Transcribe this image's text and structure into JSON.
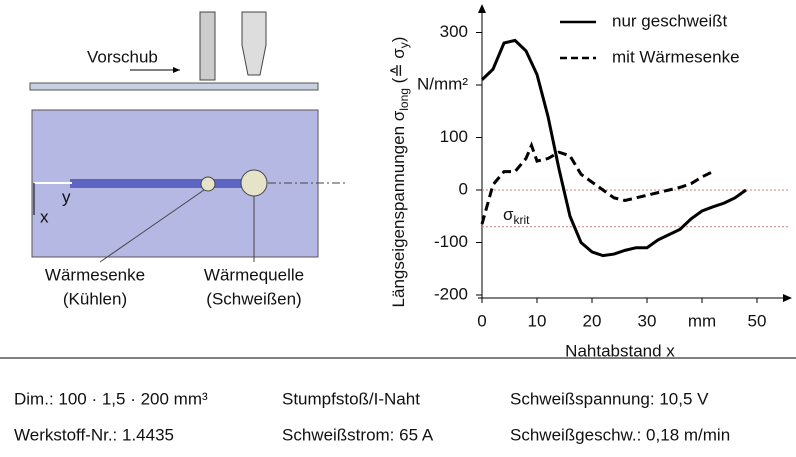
{
  "chart_data": {
    "type": "line",
    "y_label": [
      "Längseigenspannungen σ",
      "long",
      " (≙ σ",
      "y",
      ")"
    ],
    "x_label": "Nahtabstand x",
    "xlim": [
      0,
      50
    ],
    "xticks": [
      0,
      10,
      20,
      30,
      {
        "value": 40,
        "label": "mm"
      },
      50
    ],
    "ylim": [
      -200,
      300
    ],
    "yticks": [
      300,
      {
        "value": 200,
        "label": "N/mm²"
      },
      100,
      0,
      -100,
      -200
    ],
    "ref_lines": [
      0,
      -70
    ],
    "ref_color": "#d08080",
    "annotation": [
      "σ",
      "krit"
    ],
    "series": [
      {
        "name": "nur geschweißt",
        "color": "#000000",
        "style": "solid",
        "x": [
          0,
          2,
          4,
          6,
          8,
          10,
          12,
          14,
          16,
          18,
          20,
          22,
          24,
          26,
          28,
          30,
          32,
          34,
          36,
          38,
          40,
          42,
          44,
          46,
          48
        ],
        "values": [
          210,
          230,
          280,
          285,
          265,
          220,
          140,
          40,
          -50,
          -100,
          -118,
          -125,
          -122,
          -115,
          -110,
          -110,
          -95,
          -85,
          -75,
          -55,
          -40,
          -32,
          -25,
          -15,
          0
        ]
      },
      {
        "name": "mit Wärmesenke",
        "color": "#000000",
        "style": "dashed",
        "x": [
          0,
          2,
          4,
          6,
          8,
          9,
          10,
          12,
          14,
          16,
          18,
          20,
          22,
          24,
          26,
          28,
          30,
          32,
          34,
          36,
          38,
          40,
          42
        ],
        "values": [
          -65,
          10,
          35,
          35,
          60,
          85,
          55,
          60,
          72,
          65,
          30,
          15,
          0,
          -15,
          -20,
          -15,
          -10,
          -5,
          0,
          5,
          12,
          25,
          35
        ]
      }
    ]
  },
  "diagram": {
    "feed": "Vorschub",
    "axis_y": "y",
    "axis_x": "x",
    "sink": [
      "Wärmesenke",
      "(Kühlen)"
    ],
    "source": [
      "Wärmequelle",
      "(Schweißen)"
    ]
  },
  "footer": {
    "rows": [
      [
        "Dim.: 100 · 1,5 · 200 mm³",
        "Stumpfstoß/I-Naht",
        "Schweißspannung: 10,5 V"
      ],
      [
        "Werkstoff-Nr.: 1.4435",
        "Schweißstrom: 65 A",
        "Schweißgeschw.: 0,18 m/min"
      ]
    ]
  }
}
